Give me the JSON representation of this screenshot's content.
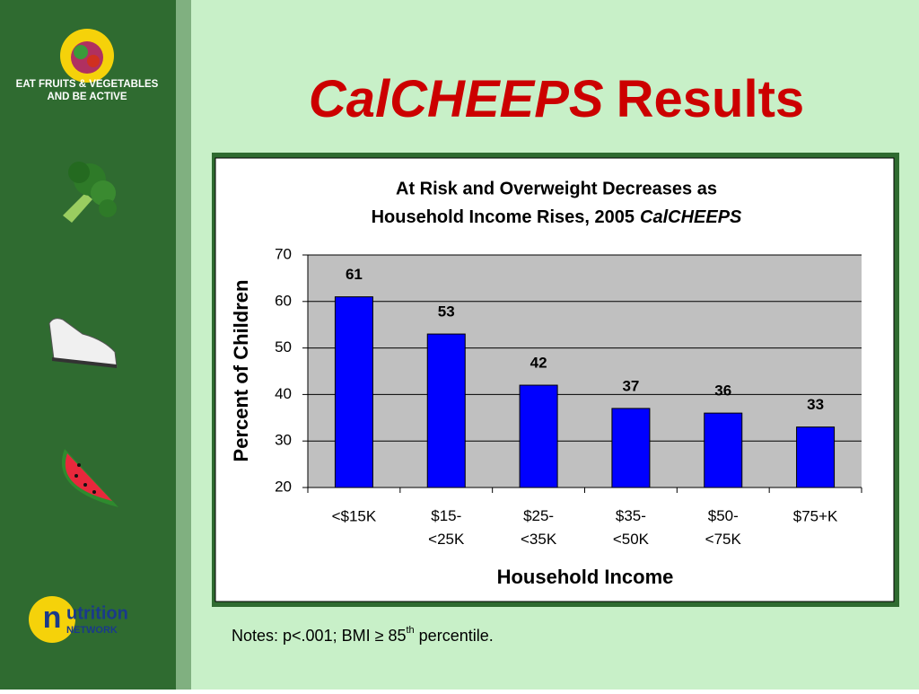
{
  "slide": {
    "logo_text": [
      "EAT FRUITS & VEGETABLES",
      "AND BE ACTIVE"
    ],
    "title_italic": "CalCHEEPS",
    "title_rest": "Results",
    "network_logo": [
      "utrition",
      "NETWORK"
    ],
    "notes": {
      "text": "Notes: p<.001; BMI ≥ 85",
      "sup": "th",
      "after": "percentile."
    }
  },
  "chart_data": {
    "type": "bar",
    "title": [
      "At Risk and Overweight Decreases as",
      "Household Income Rises, 2005",
      "CalCHEEPS"
    ],
    "categories": [
      "<$15K",
      "$15-<25K",
      "$25-<35K",
      "$35-<50K",
      "$50-<75K",
      "$75+K"
    ],
    "values": [
      61,
      53,
      42,
      37,
      36,
      33
    ],
    "color": "#0000ff",
    "ylim": [
      20,
      70
    ],
    "yticks": [
      20,
      30,
      40,
      50,
      60,
      70
    ],
    "grid": true,
    "xlabel": "Household Income",
    "ylabel": "Percent of Children"
  }
}
